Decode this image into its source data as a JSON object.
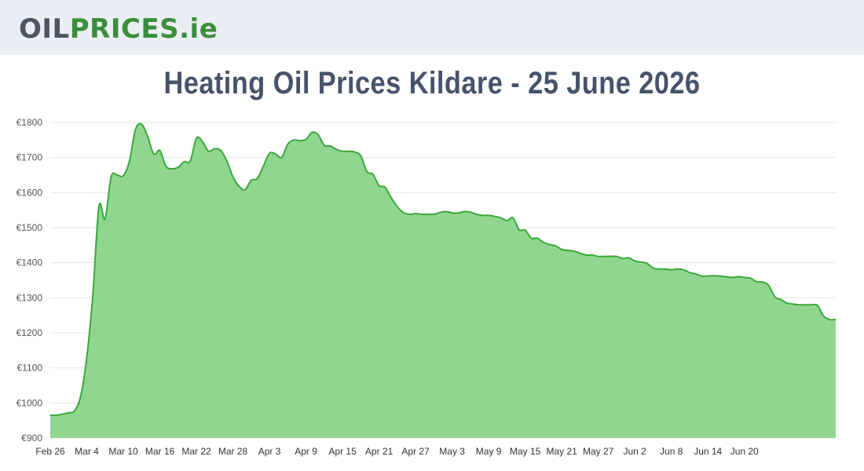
{
  "header": {
    "logo_part1": "OIL",
    "logo_part2": "PRICES",
    "logo_part3": ".ie"
  },
  "page_title": "Heating Oil Prices Kildare - 25 June 2026",
  "colors": {
    "line": "#3aa83a",
    "fill": "#90d690",
    "grid": "#e6e6e6",
    "title": "#47536a"
  },
  "chart_data": {
    "type": "area",
    "title": "Heating Oil Prices Kildare - 25 June 2026",
    "xlabel": "",
    "ylabel": "",
    "x_start": "Feb 26",
    "ylim": [
      900,
      1800
    ],
    "y_ticks": [
      "€900",
      "€1000",
      "€1100",
      "€1200",
      "€1300",
      "€1400",
      "€1500",
      "€1600",
      "€1700",
      "€1800"
    ],
    "x_ticks": [
      "Feb 26",
      "Mar 4",
      "Mar 10",
      "Mar 16",
      "Mar 22",
      "Mar 28",
      "Apr 3",
      "Apr 9",
      "Apr 15",
      "Apr 21",
      "Apr 27",
      "May 3",
      "May 9",
      "May 15",
      "May 21",
      "May 27",
      "Jun 2",
      "Jun 8",
      "Jun 14",
      "Jun 20"
    ],
    "grid": true,
    "legend": "none",
    "series": [
      {
        "values": [
          965,
          965,
          968,
          972,
          978,
          1020,
          1130,
          1310,
          1560,
          1525,
          1645,
          1650,
          1648,
          1690,
          1780,
          1795,
          1760,
          1710,
          1720,
          1675,
          1668,
          1672,
          1688,
          1690,
          1755,
          1745,
          1718,
          1725,
          1720,
          1690,
          1645,
          1618,
          1608,
          1635,
          1640,
          1675,
          1712,
          1710,
          1700,
          1738,
          1750,
          1748,
          1752,
          1772,
          1765,
          1735,
          1733,
          1723,
          1718,
          1718,
          1716,
          1705,
          1660,
          1652,
          1620,
          1615,
          1585,
          1560,
          1543,
          1538,
          1540,
          1538,
          1538,
          1538,
          1543,
          1546,
          1542,
          1542,
          1546,
          1544,
          1538,
          1535,
          1535,
          1532,
          1528,
          1520,
          1528,
          1494,
          1493,
          1470,
          1470,
          1458,
          1452,
          1448,
          1438,
          1435,
          1433,
          1427,
          1422,
          1422,
          1418,
          1418,
          1418,
          1418,
          1412,
          1414,
          1405,
          1402,
          1398,
          1385,
          1382,
          1382,
          1380,
          1382,
          1380,
          1372,
          1368,
          1362,
          1362,
          1363,
          1362,
          1360,
          1358,
          1360,
          1358,
          1356,
          1346,
          1345,
          1335,
          1303,
          1295,
          1285,
          1282,
          1280,
          1280,
          1280,
          1278,
          1248,
          1238,
          1238
        ]
      }
    ]
  }
}
